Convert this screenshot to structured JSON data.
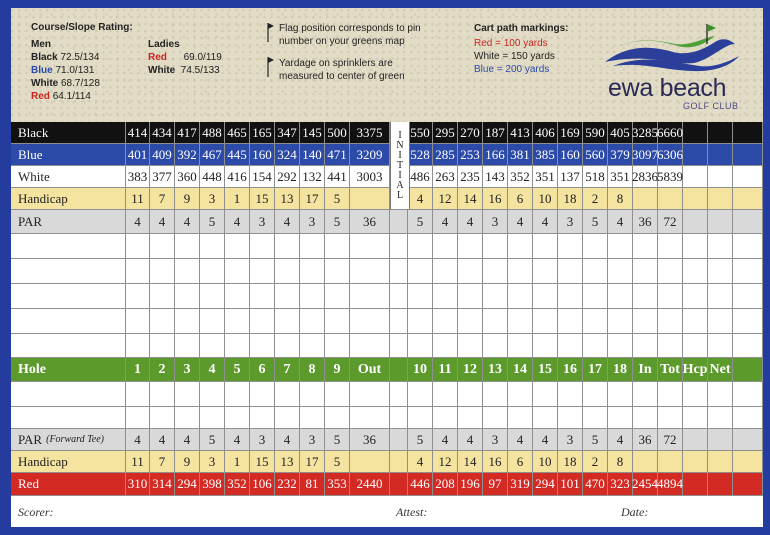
{
  "header": {
    "rating_title": "Course/Slope Rating:",
    "men_label": "Men",
    "men": [
      {
        "tee": "Black",
        "rating": "72.5/134"
      },
      {
        "tee": "Blue",
        "rating": "71.0/131"
      },
      {
        "tee": "White",
        "rating": "68.7/128"
      },
      {
        "tee": "Red",
        "rating": "64.1/114"
      }
    ],
    "ladies_label": "Ladies",
    "ladies": [
      {
        "tee": "Red",
        "rating": "69.0/119"
      },
      {
        "tee": "White",
        "rating": "74.5/133"
      }
    ],
    "note1_line1": "Flag position corresponds to pin",
    "note1_line2": "number on your greens map",
    "note2_line1": "Yardage on sprinklers are",
    "note2_line2": "measured to center of green",
    "cart_title": "Cart path markings:",
    "cart_red": "Red = 100 yards",
    "cart_white": "White = 150 yards",
    "cart_blue": "Blue = 200 yards",
    "logo_name": "ewa beach",
    "logo_sub": "GOLF CLUB"
  },
  "initial_letters": [
    "I",
    "N",
    "I",
    "T",
    "I",
    "A",
    "L"
  ],
  "rows": {
    "black": {
      "label": "Black",
      "front": [
        "414",
        "434",
        "417",
        "488",
        "465",
        "165",
        "347",
        "145",
        "500",
        "3375"
      ],
      "back": [
        "550",
        "295",
        "270",
        "187",
        "413",
        "406",
        "169",
        "590",
        "405",
        "3285",
        "6660"
      ]
    },
    "blue": {
      "label": "Blue",
      "front": [
        "401",
        "409",
        "392",
        "467",
        "445",
        "160",
        "324",
        "140",
        "471",
        "3209"
      ],
      "back": [
        "528",
        "285",
        "253",
        "166",
        "381",
        "385",
        "160",
        "560",
        "379",
        "3097",
        "6306"
      ]
    },
    "white": {
      "label": "White",
      "front": [
        "383",
        "377",
        "360",
        "448",
        "416",
        "154",
        "292",
        "132",
        "441",
        "3003"
      ],
      "back": [
        "486",
        "263",
        "235",
        "143",
        "352",
        "351",
        "137",
        "518",
        "351",
        "2836",
        "5839"
      ]
    },
    "handicap": {
      "label": "Handicap",
      "front": [
        "11",
        "7",
        "9",
        "3",
        "1",
        "15",
        "13",
        "17",
        "5",
        ""
      ],
      "back": [
        "4",
        "12",
        "14",
        "16",
        "6",
        "10",
        "18",
        "2",
        "8",
        "",
        ""
      ]
    },
    "par": {
      "label": "PAR",
      "front": [
        "4",
        "4",
        "4",
        "5",
        "4",
        "3",
        "4",
        "3",
        "5",
        "36"
      ],
      "back": [
        "5",
        "4",
        "4",
        "3",
        "4",
        "4",
        "3",
        "5",
        "4",
        "36",
        "72"
      ]
    },
    "hole": {
      "label": "Hole",
      "front": [
        "1",
        "2",
        "3",
        "4",
        "5",
        "6",
        "7",
        "8",
        "9",
        "Out"
      ],
      "back": [
        "10",
        "11",
        "12",
        "13",
        "14",
        "15",
        "16",
        "17",
        "18",
        "In",
        "Tot",
        "Hcp",
        "Net"
      ]
    },
    "par_fwd": {
      "label": "PAR",
      "label_note": "(Forward Tee)",
      "front": [
        "4",
        "4",
        "4",
        "5",
        "4",
        "3",
        "4",
        "3",
        "5",
        "36"
      ],
      "back": [
        "5",
        "4",
        "4",
        "3",
        "4",
        "4",
        "3",
        "5",
        "4",
        "36",
        "72"
      ]
    },
    "handicap2": {
      "label": "Handicap",
      "front": [
        "11",
        "7",
        "9",
        "3",
        "1",
        "15",
        "13",
        "17",
        "5",
        ""
      ],
      "back": [
        "4",
        "12",
        "14",
        "16",
        "6",
        "10",
        "18",
        "2",
        "8",
        "",
        ""
      ]
    },
    "red": {
      "label": "Red",
      "front": [
        "310",
        "314",
        "294",
        "398",
        "352",
        "106",
        "232",
        "81",
        "353",
        "2440"
      ],
      "back": [
        "446",
        "208",
        "196",
        "97",
        "319",
        "294",
        "101",
        "470",
        "323",
        "2454",
        "4894"
      ]
    }
  },
  "footer": {
    "scorer": "Scorer:",
    "attest": "Attest:",
    "date": "Date:"
  },
  "colors": {
    "border_blue": "#233c9e",
    "black_row": "#111111",
    "blue_row": "#2c4aa8",
    "yellow_row": "#f5e3a0",
    "grey_row": "#d9d9d9",
    "green_row": "#5c9a2c",
    "red_row": "#d42a24"
  }
}
